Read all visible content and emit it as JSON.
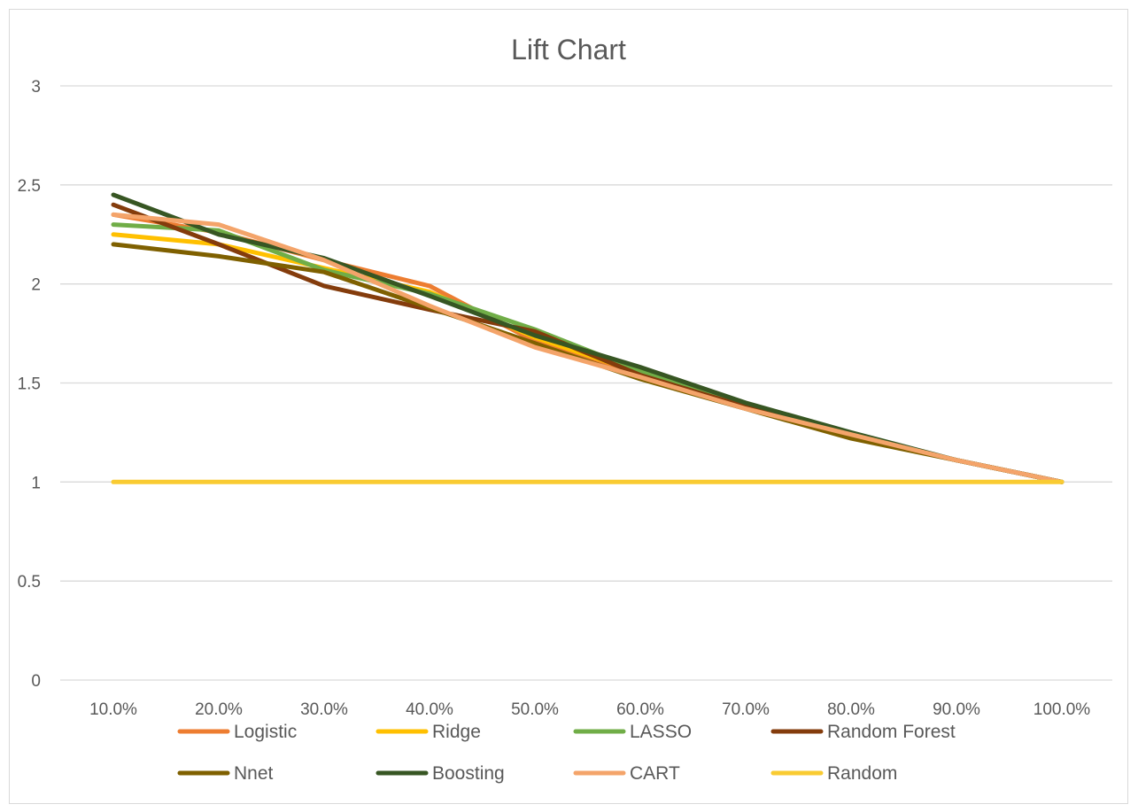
{
  "chart_data": {
    "type": "line",
    "title": "Lift Chart",
    "xlabel": "",
    "ylabel": "",
    "categories": [
      "10.0%",
      "20.0%",
      "30.0%",
      "40.0%",
      "50.0%",
      "60.0%",
      "70.0%",
      "80.0%",
      "90.0%",
      "100.0%"
    ],
    "ylim": [
      0,
      3
    ],
    "yticks": [
      "0",
      "0.5",
      "1",
      "1.5",
      "2",
      "2.5",
      "3"
    ],
    "grid": true,
    "legend_position": "bottom",
    "series": [
      {
        "name": "Logistic",
        "color": "#ED7D31",
        "values": [
          2.35,
          2.26,
          2.12,
          1.99,
          1.71,
          1.55,
          1.38,
          1.24,
          1.11,
          1.0
        ]
      },
      {
        "name": "Ridge",
        "color": "#FFC000",
        "values": [
          2.25,
          2.2,
          2.08,
          1.96,
          1.73,
          1.55,
          1.38,
          1.23,
          1.11,
          1.0
        ]
      },
      {
        "name": "LASSO",
        "color": "#70AD47",
        "values": [
          2.3,
          2.27,
          2.07,
          1.95,
          1.77,
          1.56,
          1.39,
          1.24,
          1.11,
          1.0
        ]
      },
      {
        "name": "Random Forest",
        "color": "#843C0C",
        "values": [
          2.4,
          2.2,
          1.99,
          1.87,
          1.76,
          1.54,
          1.38,
          1.23,
          1.11,
          1.0
        ]
      },
      {
        "name": "Nnet",
        "color": "#7F6000",
        "values": [
          2.2,
          2.14,
          2.06,
          1.88,
          1.7,
          1.52,
          1.37,
          1.22,
          1.11,
          1.0
        ]
      },
      {
        "name": "Boosting",
        "color": "#375623",
        "values": [
          2.45,
          2.25,
          2.13,
          1.94,
          1.74,
          1.58,
          1.4,
          1.25,
          1.11,
          1.0
        ]
      },
      {
        "name": "CART",
        "color": "#F4A46A",
        "values": [
          2.35,
          2.3,
          2.12,
          1.89,
          1.68,
          1.53,
          1.37,
          1.24,
          1.11,
          1.0
        ]
      },
      {
        "name": "Random",
        "color": "#F9CB32",
        "values": [
          1.0,
          1.0,
          1.0,
          1.0,
          1.0,
          1.0,
          1.0,
          1.0,
          1.0,
          1.0
        ]
      }
    ]
  }
}
